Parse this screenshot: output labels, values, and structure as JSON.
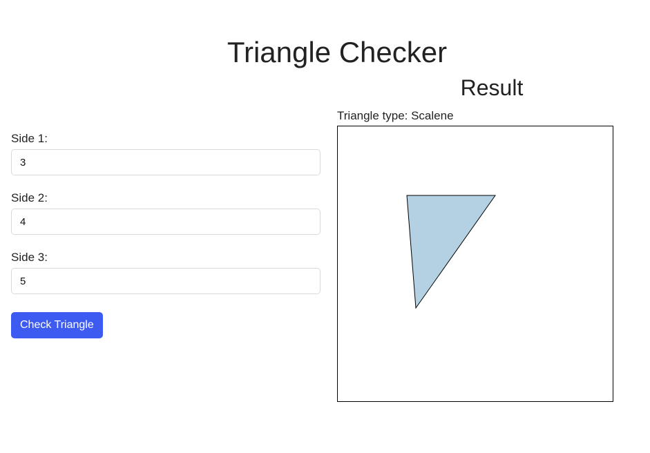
{
  "page": {
    "title": "Triangle Checker"
  },
  "form": {
    "side1": {
      "label": "Side 1:",
      "value": "3"
    },
    "side2": {
      "label": "Side 2:",
      "value": "4"
    },
    "side3": {
      "label": "Side 3:",
      "value": "5"
    },
    "button_label": "Check Triangle"
  },
  "result": {
    "heading": "Result",
    "type_text": "Triangle type: Scalene",
    "triangle": {
      "fill": "#b3d1e3",
      "stroke": "#000000"
    }
  },
  "colors": {
    "accent": "#3d5af1",
    "text": "#222222"
  }
}
